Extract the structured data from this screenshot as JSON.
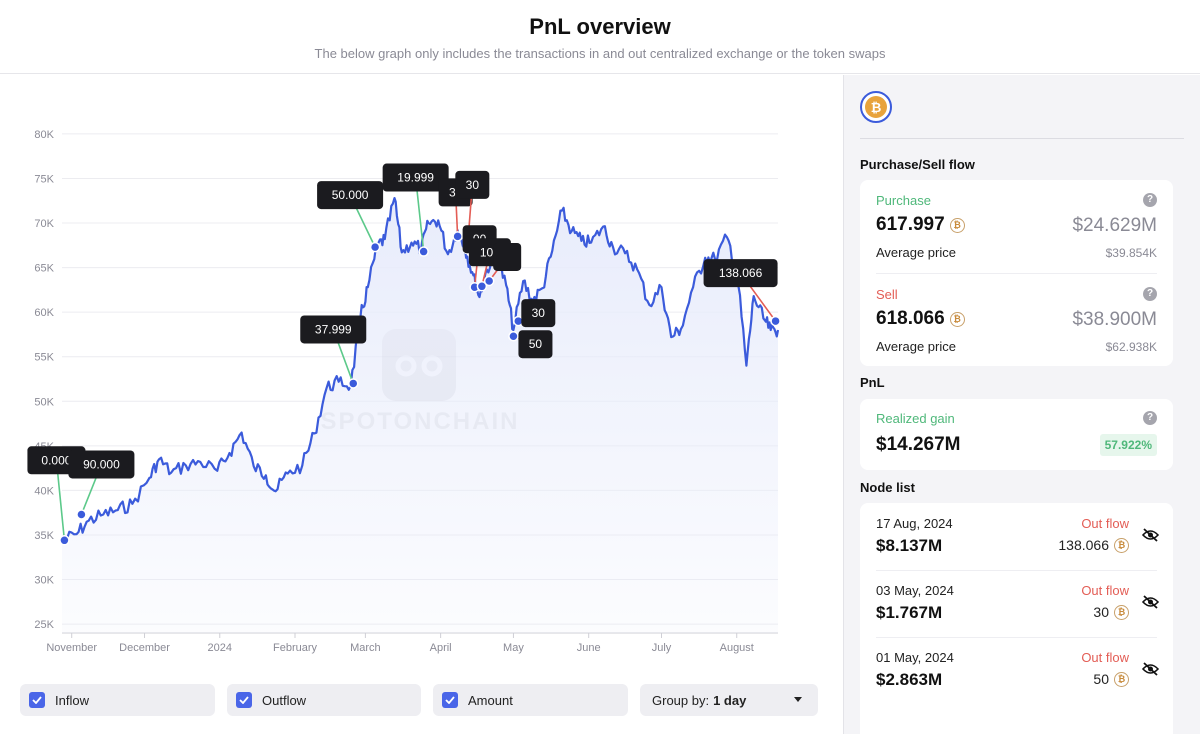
{
  "header": {
    "title": "PnL overview",
    "subtitle": "The below graph only includes the transactions in and out centralized exchange or the token swaps"
  },
  "watermark": "SPOTONCHAIN",
  "controls": {
    "inflow": "Inflow",
    "outflow": "Outflow",
    "amount": "Amount",
    "group_by_label": "Group by:",
    "group_by_value": "1 day"
  },
  "sidebar": {
    "coin_icon": "bitcoin-icon",
    "purchase_sell_title": "Purchase/Sell flow",
    "purchase": {
      "label": "Purchase",
      "amount": "617.997",
      "usd": "$24.629M",
      "avg_label": "Average price",
      "avg_value": "$39.854K"
    },
    "sell": {
      "label": "Sell",
      "amount": "618.066",
      "usd": "$38.900M",
      "avg_label": "Average price",
      "avg_value": "$62.938K"
    },
    "pnl_title": "PnL",
    "pnl": {
      "label": "Realized gain",
      "value": "$14.267M",
      "pct": "57.922%"
    },
    "node_list_title": "Node list",
    "nodes": [
      {
        "date": "17 Aug, 2024",
        "flow": "Out flow",
        "usd": "$8.137M",
        "amount": "138.066"
      },
      {
        "date": "03 May, 2024",
        "flow": "Out flow",
        "usd": "$1.767M",
        "amount": "30"
      },
      {
        "date": "01 May, 2024",
        "flow": "Out flow",
        "usd": "$2.863M",
        "amount": "50"
      }
    ]
  },
  "chart_data": {
    "type": "line",
    "title": "",
    "xlabel": "",
    "ylabel": "",
    "ylim": [
      24000,
      81000
    ],
    "grid": true,
    "y_ticks": [
      "25K",
      "30K",
      "35K",
      "40K",
      "45K",
      "50K",
      "55K",
      "60K",
      "65K",
      "70K",
      "75K",
      "80K"
    ],
    "y_tick_values": [
      25000,
      30000,
      35000,
      40000,
      45000,
      50000,
      55000,
      60000,
      65000,
      70000,
      75000,
      80000
    ],
    "x_ticks": [
      "November",
      "December",
      "2024",
      "February",
      "March",
      "April",
      "May",
      "June",
      "July",
      "August"
    ],
    "x_tick_values": [
      "2023-11-01",
      "2023-12-01",
      "2024-01-01",
      "2024-02-01",
      "2024-03-01",
      "2024-04-01",
      "2024-05-01",
      "2024-06-01",
      "2024-07-01",
      "2024-08-01"
    ],
    "x_range": [
      "2023-10-28",
      "2024-08-18"
    ],
    "colors": {
      "line": "#3b5bdb",
      "fill": "#e8ecfb",
      "inflow": "#5cc98a",
      "outflow": "#e35d55"
    },
    "series": [
      {
        "x": [
          "2023-10-28",
          "2023-11-03",
          "2023-11-08",
          "2023-11-14",
          "2023-11-20",
          "2023-11-26",
          "2023-12-03",
          "2023-12-07",
          "2023-12-12",
          "2023-12-18",
          "2023-12-24",
          "2023-12-31",
          "2024-01-05",
          "2024-01-10",
          "2024-01-15",
          "2024-01-20",
          "2024-01-24",
          "2024-01-29",
          "2024-02-04",
          "2024-02-09",
          "2024-02-14",
          "2024-02-19",
          "2024-02-24",
          "2024-02-28",
          "2024-03-02",
          "2024-03-06",
          "2024-03-09",
          "2024-03-13",
          "2024-03-16",
          "2024-03-20",
          "2024-03-24",
          "2024-03-27",
          "2024-03-31",
          "2024-04-04",
          "2024-04-08",
          "2024-04-11",
          "2024-04-14",
          "2024-04-17",
          "2024-04-20",
          "2024-04-24",
          "2024-04-28",
          "2024-05-01",
          "2024-05-05",
          "2024-05-09",
          "2024-05-13",
          "2024-05-17",
          "2024-05-21",
          "2024-05-25",
          "2024-05-29",
          "2024-06-02",
          "2024-06-07",
          "2024-06-11",
          "2024-06-16",
          "2024-06-21",
          "2024-06-26",
          "2024-07-01",
          "2024-07-05",
          "2024-07-09",
          "2024-07-14",
          "2024-07-19",
          "2024-07-23",
          "2024-07-28",
          "2024-08-01",
          "2024-08-05",
          "2024-08-08",
          "2024-08-12",
          "2024-08-15",
          "2024-08-18"
        ],
        "y": [
          34400,
          35100,
          36600,
          37300,
          37800,
          38500,
          41400,
          43500,
          42000,
          42800,
          43200,
          42200,
          44200,
          46500,
          42700,
          41700,
          39900,
          41900,
          42800,
          46400,
          51500,
          52200,
          51800,
          59500,
          62800,
          67500,
          68200,
          72800,
          66700,
          67800,
          67100,
          70000,
          70300,
          66500,
          69200,
          67200,
          64500,
          61700,
          64800,
          66400,
          63000,
          58000,
          63500,
          61300,
          62700,
          66900,
          71400,
          69100,
          68000,
          67800,
          69600,
          67300,
          66600,
          64800,
          60800,
          62800,
          57200,
          58100,
          62800,
          66100,
          66000,
          68400,
          64800,
          54000,
          61800,
          59300,
          58000,
          58000
        ]
      }
    ],
    "annotations": [
      {
        "label": "0.000",
        "type": "inflow",
        "date": "2023-10-29",
        "price": 34400
      },
      {
        "label": "90.000",
        "type": "inflow",
        "date": "2023-11-05",
        "price": 37300
      },
      {
        "label": "37.999",
        "type": "inflow",
        "date": "2024-02-25",
        "price": 52000
      },
      {
        "label": "50.000",
        "type": "inflow",
        "date": "2024-03-05",
        "price": 67300
      },
      {
        "label": "19.999",
        "type": "inflow",
        "date": "2024-03-25",
        "price": 66800
      },
      {
        "label": "30",
        "type": "outflow",
        "date": "2024-04-08",
        "price": 68500
      },
      {
        "label": "30",
        "type": "outflow",
        "date": "2024-04-12",
        "price": 67100
      },
      {
        "label": "00",
        "type": "outflow",
        "date": "2024-04-15",
        "price": 62800
      },
      {
        "label": "100",
        "type": "outflow",
        "date": "2024-04-18",
        "price": 62900
      },
      {
        "label": "",
        "type": "outflow",
        "date": "2024-04-21",
        "price": 63500
      },
      {
        "label": "30",
        "type": "outflow",
        "date": "2024-05-03",
        "price": 59000
      },
      {
        "label": "50",
        "type": "outflow",
        "date": "2024-05-01",
        "price": 57300
      },
      {
        "label": "138.066",
        "type": "outflow",
        "date": "2024-08-17",
        "price": 59000
      }
    ]
  }
}
